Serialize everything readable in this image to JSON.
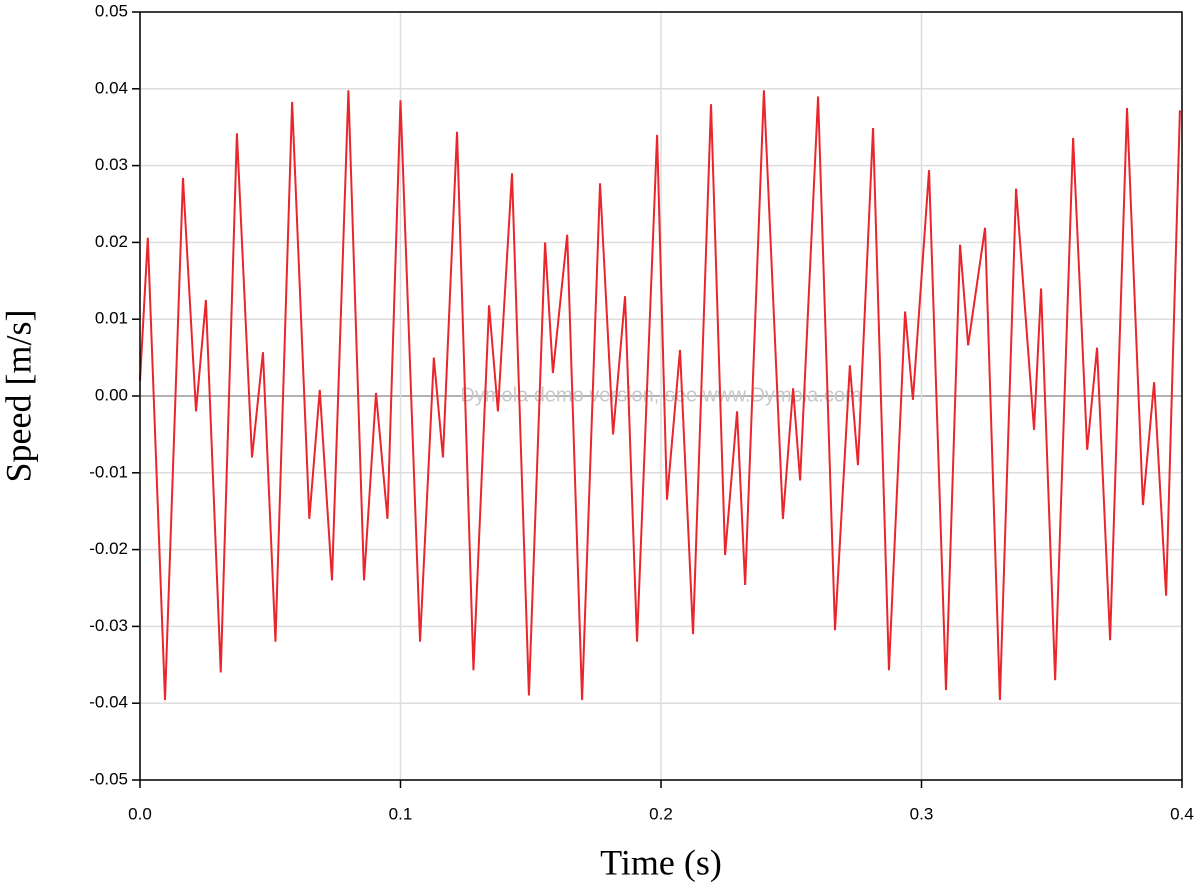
{
  "chart_data": {
    "type": "line",
    "xlabel": "Time (s)",
    "ylabel": "Speed [m/s]",
    "annotation": "Dymola demo version, see www.Dymola.com",
    "color": "#e8262b",
    "x": [
      0.0,
      0.003,
      0.0096,
      0.0165,
      0.0215,
      0.0253,
      0.031,
      0.0372,
      0.043,
      0.0472,
      0.052,
      0.0584,
      0.065,
      0.069,
      0.0737,
      0.08,
      0.086,
      0.0906,
      0.095,
      0.1,
      0.1075,
      0.1128,
      0.1163,
      0.1217,
      0.128,
      0.134,
      0.1374,
      0.1428,
      0.1493,
      0.1555,
      0.1585,
      0.164,
      0.1697,
      0.1766,
      0.1816,
      0.1862,
      0.1908,
      0.1985,
      0.2023,
      0.2073,
      0.2123,
      0.2192,
      0.2246,
      0.2292,
      0.2323,
      0.2395,
      0.2468,
      0.2507,
      0.2534,
      0.2603,
      0.2668,
      0.2725,
      0.2756,
      0.2814,
      0.2875,
      0.2937,
      0.2967,
      0.3029,
      0.3094,
      0.3148,
      0.3179,
      0.3244,
      0.3301,
      0.3363,
      0.3432,
      0.3459,
      0.3513,
      0.3582,
      0.3636,
      0.3674,
      0.3724,
      0.3789,
      0.385,
      0.3893,
      0.3939,
      0.3992
    ],
    "values": [
      0.002,
      0.0206,
      -0.0396,
      0.0284,
      -0.002,
      0.0125,
      -0.036,
      0.0342,
      -0.008,
      0.0057,
      -0.032,
      0.0383,
      -0.016,
      0.0008,
      -0.024,
      0.0398,
      -0.024,
      0.0004,
      -0.016,
      0.0385,
      -0.032,
      0.005,
      -0.008,
      0.0344,
      -0.0357,
      0.0118,
      -0.002,
      0.029,
      -0.039,
      0.02,
      0.003,
      0.021,
      -0.0396,
      0.0277,
      -0.005,
      0.013,
      -0.032,
      0.034,
      -0.0135,
      0.006,
      -0.031,
      0.038,
      -0.0207,
      -0.002,
      -0.0246,
      0.0398,
      -0.016,
      0.001,
      -0.011,
      0.039,
      -0.0305,
      0.004,
      -0.009,
      0.0349,
      -0.0357,
      0.011,
      -0.0005,
      0.0294,
      -0.0383,
      0.0197,
      0.0066,
      0.0219,
      -0.0396,
      0.027,
      -0.0044,
      0.014,
      -0.037,
      0.0336,
      -0.007,
      0.0063,
      -0.0318,
      0.0375,
      -0.0142,
      0.0018,
      -0.026,
      0.0372
    ],
    "xlim": [
      0,
      0.4
    ],
    "ylim": [
      -0.05,
      0.05
    ],
    "xticks": [
      {
        "value": 0,
        "label": "0.0"
      },
      0.1,
      0.2,
      0.3,
      0.4
    ],
    "yticks": [
      -0.05,
      -0.04,
      -0.03,
      -0.02,
      -0.01,
      {
        "value": 0,
        "label": "0.00"
      },
      0.01,
      0.02,
      0.03,
      0.04,
      0.05
    ],
    "grid": true
  }
}
